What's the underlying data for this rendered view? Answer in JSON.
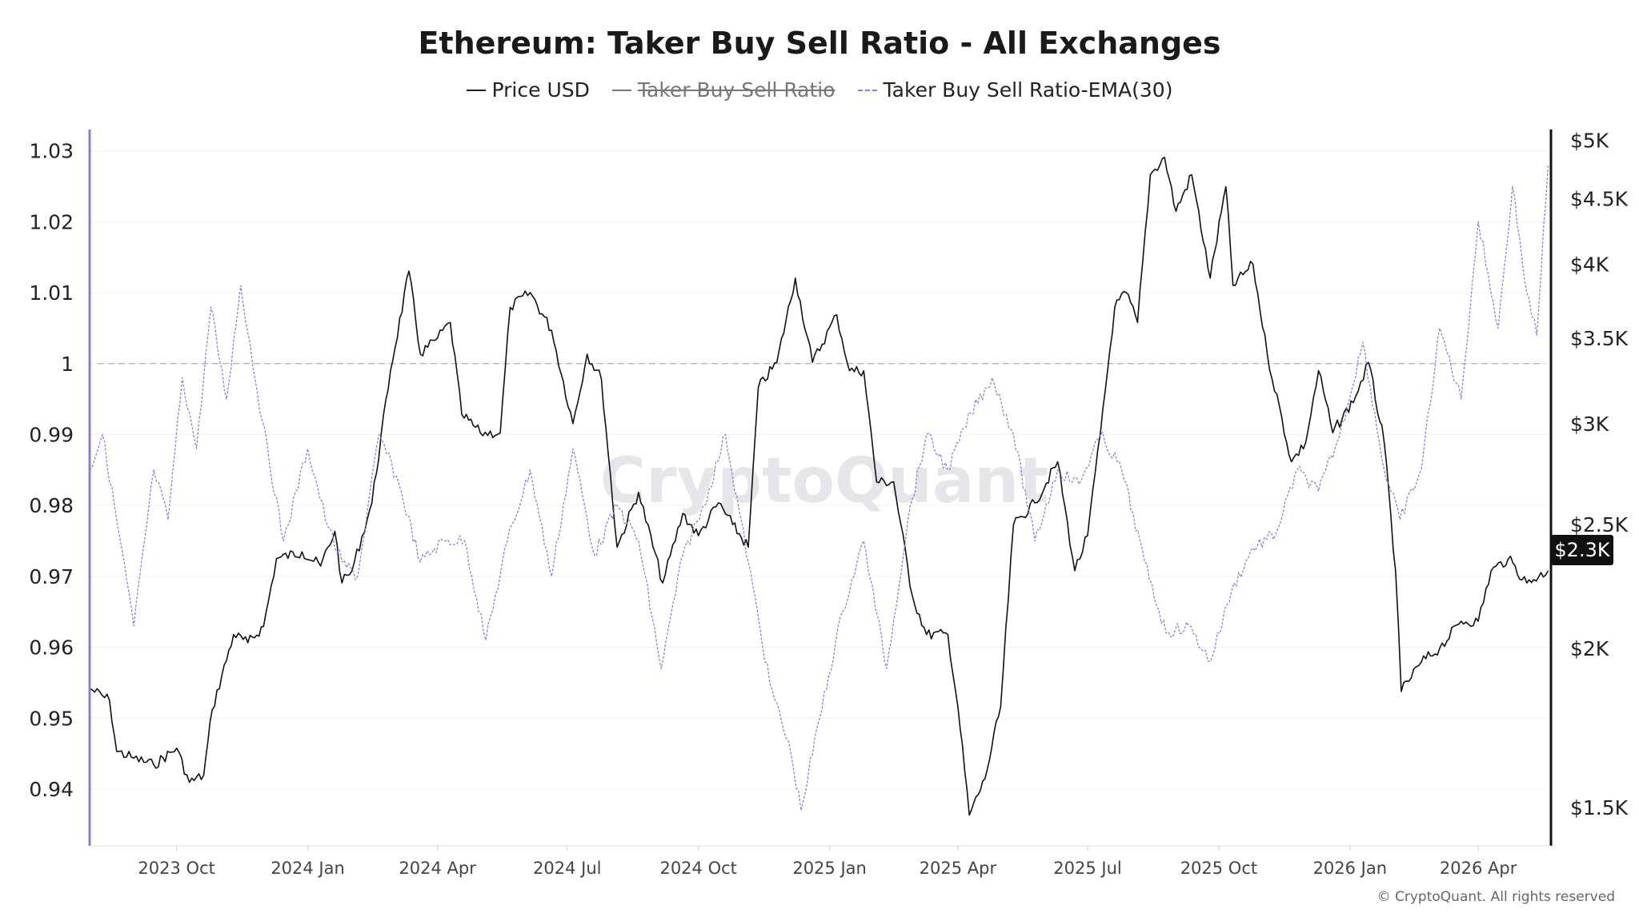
{
  "title": "Ethereum: Taker Buy Sell Ratio - All Exchanges",
  "legend": {
    "price": "Price USD",
    "ratio": "Taker Buy Sell Ratio",
    "ema": "Taker Buy Sell Ratio-EMA(30)"
  },
  "watermark": "CryptoQuant",
  "copyright": "© CryptoQuant. All rights reserved",
  "price_badge": "$2.3K",
  "colors": {
    "price": "#111111",
    "ema": "#8b7fd1",
    "left_axis": "#8b7fd1",
    "reference_line": "#bbbbbb",
    "grid": "#f0f0f0"
  },
  "chart_data": {
    "type": "line",
    "title": "Ethereum: Taker Buy Sell Ratio - All Exchanges",
    "x_range": [
      "2023-08-01",
      "2026-05-22"
    ],
    "x_ticks": [
      {
        "label": "2023 Oct",
        "date": "2023-10-01"
      },
      {
        "label": "2024 Jan",
        "date": "2024-01-01"
      },
      {
        "label": "2024 Apr",
        "date": "2024-04-01"
      },
      {
        "label": "2024 Jul",
        "date": "2024-07-01"
      },
      {
        "label": "2024 Oct",
        "date": "2024-10-01"
      },
      {
        "label": "2025 Jan",
        "date": "2025-01-01"
      },
      {
        "label": "2025 Apr",
        "date": "2025-04-01"
      },
      {
        "label": "2025 Jul",
        "date": "2025-07-01"
      },
      {
        "label": "2025 Oct",
        "date": "2025-10-01"
      },
      {
        "label": "2026 Jan",
        "date": "2026-01-01"
      },
      {
        "label": "2026 Apr",
        "date": "2026-04-01"
      }
    ],
    "left_axis": {
      "range": [
        0.932,
        1.033
      ],
      "ticks": [
        {
          "label": "0.94",
          "value": 0.94
        },
        {
          "label": "0.95",
          "value": 0.95
        },
        {
          "label": "0.96",
          "value": 0.96
        },
        {
          "label": "0.97",
          "value": 0.97
        },
        {
          "label": "0.98",
          "value": 0.98
        },
        {
          "label": "0.99",
          "value": 0.99
        },
        {
          "label": "1",
          "value": 1.0
        },
        {
          "label": "1.01",
          "value": 1.01
        },
        {
          "label": "1.02",
          "value": 1.02
        },
        {
          "label": "1.03",
          "value": 1.03
        }
      ],
      "reference_line": 1.0
    },
    "right_axis": {
      "scale": "log",
      "range": [
        1400,
        5100
      ],
      "ticks": [
        {
          "label": "$1.5K",
          "value": 1500
        },
        {
          "label": "$2K",
          "value": 2000
        },
        {
          "label": "$2.5K",
          "value": 2500
        },
        {
          "label": "$3K",
          "value": 3000
        },
        {
          "label": "$3.5K",
          "value": 3500
        },
        {
          "label": "$4K",
          "value": 4000
        },
        {
          "label": "$4.5K",
          "value": 4500
        },
        {
          "label": "$5K",
          "value": 5000
        }
      ]
    },
    "series": [
      {
        "name": "Price USD",
        "axis": "right",
        "style": "solid",
        "points": [
          [
            "2023-08-01",
            1860
          ],
          [
            "2023-08-15",
            1820
          ],
          [
            "2023-08-20",
            1660
          ],
          [
            "2023-09-01",
            1640
          ],
          [
            "2023-09-15",
            1620
          ],
          [
            "2023-10-01",
            1670
          ],
          [
            "2023-10-10",
            1570
          ],
          [
            "2023-10-20",
            1590
          ],
          [
            "2023-10-26",
            1790
          ],
          [
            "2023-11-10",
            2050
          ],
          [
            "2023-11-20",
            2020
          ],
          [
            "2023-12-01",
            2080
          ],
          [
            "2023-12-10",
            2350
          ],
          [
            "2023-12-28",
            2380
          ],
          [
            "2024-01-10",
            2320
          ],
          [
            "2024-01-20",
            2470
          ],
          [
            "2024-01-25",
            2250
          ],
          [
            "2024-02-01",
            2300
          ],
          [
            "2024-02-15",
            2600
          ],
          [
            "2024-02-28",
            3300
          ],
          [
            "2024-03-12",
            3950
          ],
          [
            "2024-03-20",
            3400
          ],
          [
            "2024-04-01",
            3500
          ],
          [
            "2024-04-10",
            3600
          ],
          [
            "2024-04-18",
            3050
          ],
          [
            "2024-05-01",
            2950
          ],
          [
            "2024-05-15",
            2950
          ],
          [
            "2024-05-22",
            3700
          ],
          [
            "2024-06-05",
            3800
          ],
          [
            "2024-06-20",
            3550
          ],
          [
            "2024-07-05",
            3000
          ],
          [
            "2024-07-15",
            3400
          ],
          [
            "2024-07-25",
            3250
          ],
          [
            "2024-08-05",
            2400
          ],
          [
            "2024-08-20",
            2650
          ],
          [
            "2024-09-06",
            2250
          ],
          [
            "2024-09-20",
            2550
          ],
          [
            "2024-10-01",
            2450
          ],
          [
            "2024-10-15",
            2600
          ],
          [
            "2024-10-25",
            2500
          ],
          [
            "2024-11-05",
            2400
          ],
          [
            "2024-11-12",
            3200
          ],
          [
            "2024-11-25",
            3350
          ],
          [
            "2024-12-08",
            3900
          ],
          [
            "2024-12-20",
            3350
          ],
          [
            "2025-01-06",
            3650
          ],
          [
            "2025-01-15",
            3300
          ],
          [
            "2025-01-25",
            3300
          ],
          [
            "2025-02-03",
            2700
          ],
          [
            "2025-02-15",
            2700
          ],
          [
            "2025-02-28",
            2200
          ],
          [
            "2025-03-10",
            2050
          ],
          [
            "2025-03-25",
            2050
          ],
          [
            "2025-04-01",
            1800
          ],
          [
            "2025-04-09",
            1480
          ],
          [
            "2025-04-20",
            1580
          ],
          [
            "2025-05-01",
            1800
          ],
          [
            "2025-05-10",
            2500
          ],
          [
            "2025-05-25",
            2600
          ],
          [
            "2025-06-10",
            2800
          ],
          [
            "2025-06-22",
            2300
          ],
          [
            "2025-07-01",
            2450
          ],
          [
            "2025-07-10",
            2950
          ],
          [
            "2025-07-20",
            3700
          ],
          [
            "2025-07-28",
            3800
          ],
          [
            "2025-08-05",
            3600
          ],
          [
            "2025-08-14",
            4700
          ],
          [
            "2025-08-24",
            4850
          ],
          [
            "2025-09-01",
            4400
          ],
          [
            "2025-09-12",
            4700
          ],
          [
            "2025-09-25",
            3900
          ],
          [
            "2025-10-06",
            4600
          ],
          [
            "2025-10-11",
            3850
          ],
          [
            "2025-10-25",
            4000
          ],
          [
            "2025-11-04",
            3400
          ],
          [
            "2025-11-21",
            2800
          ],
          [
            "2025-12-01",
            2900
          ],
          [
            "2025-12-10",
            3300
          ],
          [
            "2025-12-20",
            2950
          ],
          [
            "2026-01-05",
            3150
          ],
          [
            "2026-01-14",
            3350
          ],
          [
            "2026-01-25",
            2900
          ],
          [
            "2026-02-02",
            2300
          ],
          [
            "2026-02-06",
            1850
          ],
          [
            "2026-02-20",
            1950
          ],
          [
            "2026-03-05",
            2000
          ],
          [
            "2026-03-20",
            2100
          ],
          [
            "2026-04-01",
            2100
          ],
          [
            "2026-04-10",
            2300
          ],
          [
            "2026-04-22",
            2350
          ],
          [
            "2026-05-05",
            2250
          ],
          [
            "2026-05-20",
            2300
          ]
        ]
      },
      {
        "name": "Taker Buy Sell Ratio",
        "axis": "left",
        "style": "solid",
        "hidden": true,
        "points": []
      },
      {
        "name": "Taker Buy Sell Ratio-EMA(30)",
        "axis": "left",
        "style": "dashed",
        "points": [
          [
            "2023-08-01",
            0.985
          ],
          [
            "2023-08-10",
            0.99
          ],
          [
            "2023-08-20",
            0.978
          ],
          [
            "2023-09-01",
            0.963
          ],
          [
            "2023-09-15",
            0.985
          ],
          [
            "2023-09-25",
            0.978
          ],
          [
            "2023-10-05",
            0.998
          ],
          [
            "2023-10-15",
            0.988
          ],
          [
            "2023-10-25",
            1.008
          ],
          [
            "2023-11-05",
            0.995
          ],
          [
            "2023-11-15",
            1.011
          ],
          [
            "2023-11-30",
            0.992
          ],
          [
            "2023-12-15",
            0.975
          ],
          [
            "2024-01-01",
            0.988
          ],
          [
            "2024-01-15",
            0.977
          ],
          [
            "2024-01-25",
            0.972
          ],
          [
            "2024-02-05",
            0.97
          ],
          [
            "2024-02-20",
            0.99
          ],
          [
            "2024-03-05",
            0.983
          ],
          [
            "2024-03-20",
            0.972
          ],
          [
            "2024-04-05",
            0.975
          ],
          [
            "2024-04-20",
            0.975
          ],
          [
            "2024-05-05",
            0.961
          ],
          [
            "2024-05-20",
            0.975
          ],
          [
            "2024-06-05",
            0.985
          ],
          [
            "2024-06-20",
            0.97
          ],
          [
            "2024-07-05",
            0.988
          ],
          [
            "2024-07-20",
            0.973
          ],
          [
            "2024-08-05",
            0.98
          ],
          [
            "2024-08-20",
            0.975
          ],
          [
            "2024-09-05",
            0.957
          ],
          [
            "2024-09-20",
            0.973
          ],
          [
            "2024-10-05",
            0.98
          ],
          [
            "2024-10-20",
            0.99
          ],
          [
            "2024-11-05",
            0.972
          ],
          [
            "2024-11-20",
            0.955
          ],
          [
            "2024-12-05",
            0.945
          ],
          [
            "2024-12-12",
            0.937
          ],
          [
            "2024-12-25",
            0.95
          ],
          [
            "2025-01-10",
            0.965
          ],
          [
            "2025-01-25",
            0.975
          ],
          [
            "2025-02-10",
            0.957
          ],
          [
            "2025-02-25",
            0.978
          ],
          [
            "2025-03-10",
            0.99
          ],
          [
            "2025-03-25",
            0.985
          ],
          [
            "2025-04-10",
            0.993
          ],
          [
            "2025-04-25",
            0.998
          ],
          [
            "2025-05-10",
            0.99
          ],
          [
            "2025-05-25",
            0.975
          ],
          [
            "2025-06-10",
            0.985
          ],
          [
            "2025-06-25",
            0.983
          ],
          [
            "2025-07-10",
            0.99
          ],
          [
            "2025-07-25",
            0.985
          ],
          [
            "2025-08-10",
            0.972
          ],
          [
            "2025-08-25",
            0.962
          ],
          [
            "2025-09-10",
            0.963
          ],
          [
            "2025-09-25",
            0.958
          ],
          [
            "2025-10-10",
            0.968
          ],
          [
            "2025-10-25",
            0.974
          ],
          [
            "2025-11-10",
            0.976
          ],
          [
            "2025-11-25",
            0.985
          ],
          [
            "2025-12-10",
            0.982
          ],
          [
            "2025-12-25",
            0.99
          ],
          [
            "2026-01-10",
            1.003
          ],
          [
            "2026-01-25",
            0.985
          ],
          [
            "2026-02-05",
            0.978
          ],
          [
            "2026-02-20",
            0.985
          ],
          [
            "2026-03-05",
            1.005
          ],
          [
            "2026-03-20",
            0.995
          ],
          [
            "2026-04-01",
            1.02
          ],
          [
            "2026-04-15",
            1.005
          ],
          [
            "2026-04-25",
            1.025
          ],
          [
            "2026-05-05",
            1.01
          ],
          [
            "2026-05-12",
            1.004
          ],
          [
            "2026-05-20",
            1.028
          ]
        ]
      }
    ],
    "grid": true,
    "legend_position": "top-center"
  }
}
